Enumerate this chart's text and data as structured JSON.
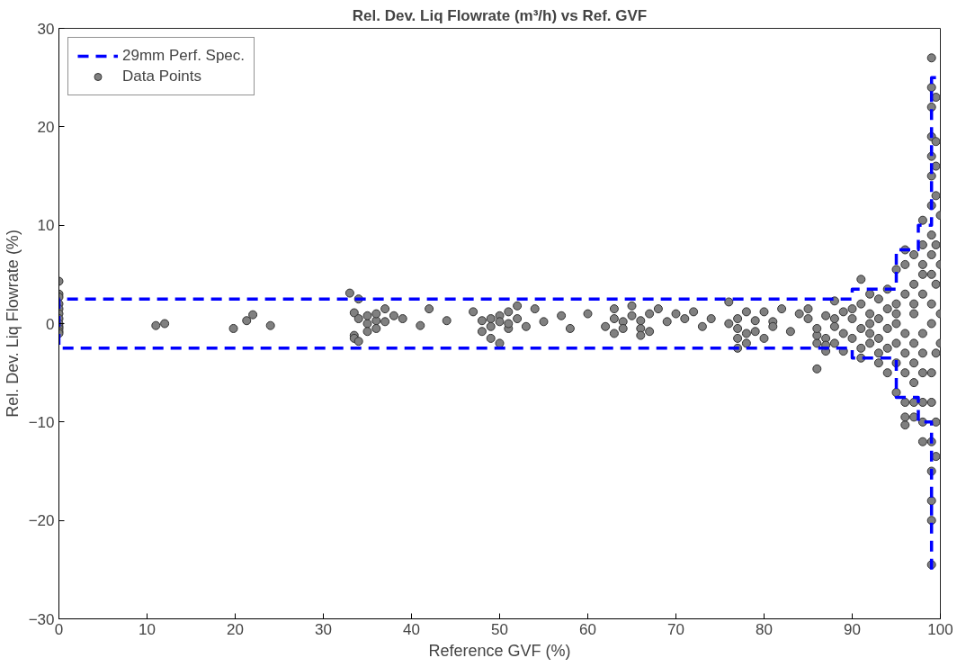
{
  "chart_data": {
    "type": "scatter",
    "title": "Rel. Dev. Liq Flowrate (m³/h) vs Ref. GVF",
    "xlabel": "Reference GVF (%)",
    "ylabel": "Rel. Dev. Liq Flowrate (%)",
    "xlim": [
      0,
      100
    ],
    "ylim": [
      -30,
      30
    ],
    "xticks": [
      0,
      10,
      20,
      30,
      40,
      50,
      60,
      70,
      80,
      90,
      100
    ],
    "yticks": [
      -30,
      -20,
      -10,
      0,
      10,
      20,
      30
    ],
    "grid": false,
    "legend": "top left",
    "series": [
      {
        "name": "29mm Perf. Spec.",
        "type": "line",
        "line_style": "dashed",
        "color": "#0000ff",
        "x": [
          99,
          99,
          97.5,
          97.5,
          95,
          95,
          90,
          90,
          0,
          0,
          90,
          90,
          95,
          95,
          97.5,
          97.5,
          99,
          99,
          100
        ],
        "values": [
          -25,
          -10,
          -10,
          -7.5,
          -7.5,
          -3.5,
          -3.5,
          -2.5,
          -2.5,
          2.5,
          2.5,
          3.5,
          3.5,
          7.5,
          7.5,
          10,
          10,
          25,
          25
        ]
      },
      {
        "name": "Data Points",
        "marker": "circle",
        "color": "#808080",
        "x": [
          0,
          0,
          0,
          0,
          0,
          0,
          0,
          0,
          0,
          0,
          0,
          0,
          11,
          12,
          19.8,
          21.3,
          22,
          24,
          33,
          33.5,
          33.5,
          33.5,
          34,
          34,
          34,
          35,
          35,
          35,
          36,
          36,
          36,
          37,
          37,
          38,
          39,
          41,
          42,
          44,
          47,
          48,
          48,
          49,
          49,
          49,
          50,
          50,
          50,
          51,
          51,
          51,
          52,
          52,
          53,
          54,
          55,
          57,
          58,
          60,
          62,
          63,
          63,
          63,
          64,
          64,
          65,
          65,
          66,
          66,
          66,
          67,
          67,
          68,
          69,
          70,
          71,
          72,
          73,
          74,
          76,
          76,
          77,
          77,
          77,
          77,
          78,
          78,
          78,
          79,
          79,
          80,
          80,
          81,
          81,
          82,
          83,
          84,
          85,
          85,
          86,
          86,
          86,
          86,
          87,
          87,
          87,
          87,
          88,
          88,
          88,
          88,
          89,
          89,
          89,
          90,
          90,
          90,
          91,
          91,
          91,
          91,
          91,
          92,
          92,
          92,
          92,
          92,
          93,
          93,
          93,
          93,
          93,
          94,
          94,
          94,
          94,
          94,
          95,
          95,
          95,
          95,
          95,
          95,
          95,
          96,
          96,
          96,
          96,
          96,
          96,
          96,
          96,
          96,
          97,
          97,
          97,
          97,
          97,
          97,
          97,
          97,
          97,
          98,
          98,
          98,
          98,
          98,
          98,
          98,
          98,
          98,
          98,
          98,
          99,
          99,
          99,
          99,
          99,
          99,
          99,
          99,
          99,
          99,
          99,
          99,
          99,
          99,
          99,
          99,
          99,
          99,
          99,
          99.5,
          99.5,
          99.5,
          99.5,
          99.5,
          99.5,
          99.5,
          99.5,
          99.5,
          100,
          100,
          100,
          100
        ],
        "values": [
          4.3,
          3,
          2.7,
          2,
          1.5,
          1,
          0.5,
          0,
          -0.3,
          -0.5,
          -0.8,
          -1,
          -0.2,
          0,
          -0.5,
          0.3,
          0.9,
          -0.2,
          3.1,
          -1.2,
          1.1,
          -1.5,
          -1.8,
          2.5,
          0.5,
          0,
          -0.8,
          0.8,
          0.3,
          -0.5,
          1,
          1.5,
          0.2,
          0.8,
          0.5,
          -0.2,
          1.5,
          0.3,
          1.2,
          -0.8,
          0.3,
          -1.5,
          0.5,
          -0.3,
          0.8,
          -2,
          0.2,
          1.2,
          -0.5,
          0,
          1.8,
          0.5,
          -0.3,
          1.5,
          0.2,
          0.8,
          -0.5,
          1,
          -0.3,
          0.5,
          -1,
          1.5,
          0.2,
          -0.5,
          1.8,
          0.8,
          -0.5,
          0.3,
          -1.2,
          1,
          -0.8,
          1.5,
          0.2,
          1,
          0.5,
          1.2,
          -0.3,
          0.5,
          2.2,
          0,
          -0.5,
          -1.5,
          -2.5,
          0.5,
          -1,
          1.2,
          -2,
          0.3,
          -0.8,
          1.2,
          -1.5,
          0.2,
          -0.3,
          1.5,
          -0.8,
          1,
          0.5,
          1.5,
          -4.6,
          -2,
          -1.2,
          -0.5,
          -2.8,
          -1.5,
          0.8,
          -2.2,
          -0.3,
          0.5,
          -2,
          2.3,
          -1,
          1.2,
          -2.8,
          0.5,
          -1.5,
          1.5,
          4.5,
          2,
          -0.5,
          -2.5,
          -3.5,
          3,
          1,
          -1,
          -2,
          0,
          2.5,
          -3,
          0.5,
          -1.5,
          -4,
          1.5,
          -0.5,
          -2.5,
          -5,
          3.5,
          5.5,
          2,
          0,
          -2,
          -4,
          -7,
          1,
          7.5,
          6,
          3,
          -1,
          -3,
          -5,
          -10.3,
          -9.5,
          -8,
          7,
          4,
          1,
          -2,
          -4,
          -6,
          -8,
          -9.5,
          2,
          10.5,
          8,
          6,
          3,
          -1,
          -3,
          -5,
          -8,
          -10,
          -12,
          5,
          27,
          24,
          22,
          19,
          17,
          15,
          12,
          9,
          5,
          0,
          -5,
          -8,
          -12,
          -15,
          -18,
          -24.5,
          -20,
          2,
          7,
          23,
          18.5,
          16,
          13,
          8,
          -3,
          -10,
          -13.5,
          4,
          1,
          -2,
          6,
          11
        ]
      }
    ]
  }
}
